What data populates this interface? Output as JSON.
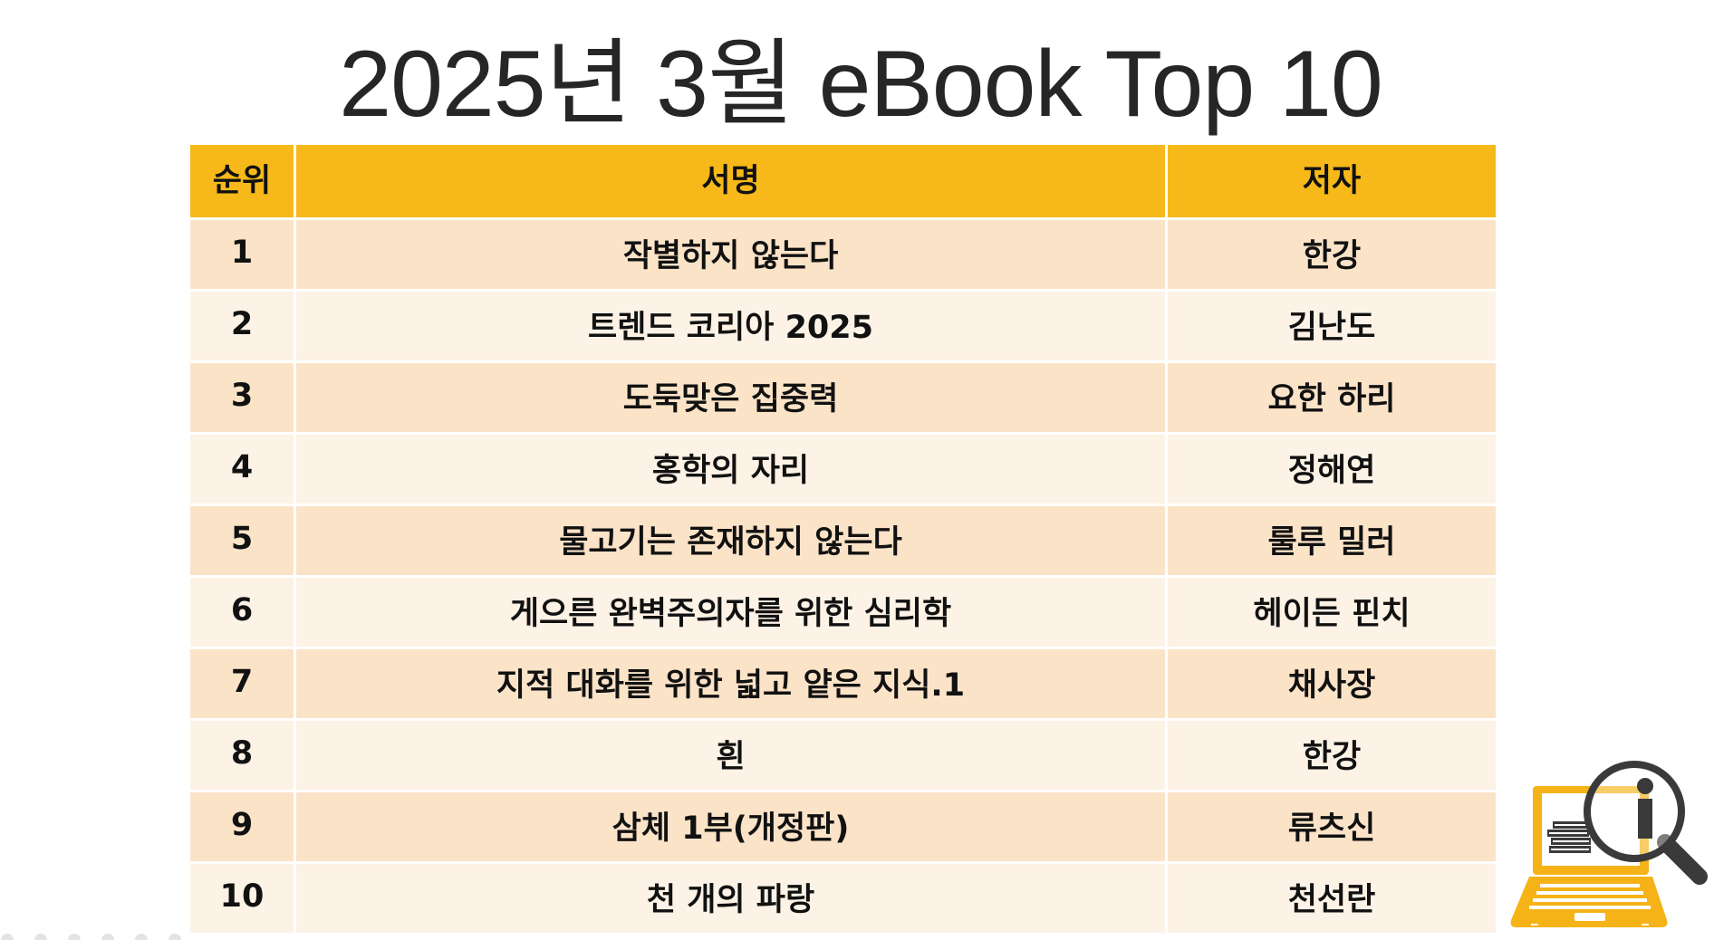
{
  "title": "2025년 3월 eBook Top 10",
  "columns": {
    "rank": "순위",
    "book_title": "서명",
    "author": "저자"
  },
  "rows": [
    {
      "rank": "1",
      "book_title": "작별하지 않는다",
      "author": "한강"
    },
    {
      "rank": "2",
      "book_title": "트렌드 코리아 2025",
      "author": "김난도"
    },
    {
      "rank": "3",
      "book_title": "도둑맞은 집중력",
      "author": "요한 하리"
    },
    {
      "rank": "4",
      "book_title": "홍학의 자리",
      "author": "정해연"
    },
    {
      "rank": "5",
      "book_title": "물고기는 존재하지 않는다",
      "author": "룰루 밀러"
    },
    {
      "rank": "6",
      "book_title": "게으른 완벽주의자를 위한 심리학",
      "author": "헤이든 핀치"
    },
    {
      "rank": "7",
      "book_title": "지적 대화를 위한 넓고 얕은 지식.1",
      "author": "채사장"
    },
    {
      "rank": "8",
      "book_title": "흰",
      "author": "한강"
    },
    {
      "rank": "9",
      "book_title": "삼체 1부(개정판)",
      "author": "류츠신"
    },
    {
      "rank": "10",
      "book_title": "천 개의 파랑",
      "author": "천선란"
    }
  ],
  "colors": {
    "header": "#f6b919",
    "row_odd": "#fbe3c8",
    "row_even": "#fdf2e6",
    "icon_accent": "#f5b317",
    "icon_dark": "#3a3a3a"
  },
  "icons": {
    "decoration": "laptop-books-magnifier-icon"
  }
}
